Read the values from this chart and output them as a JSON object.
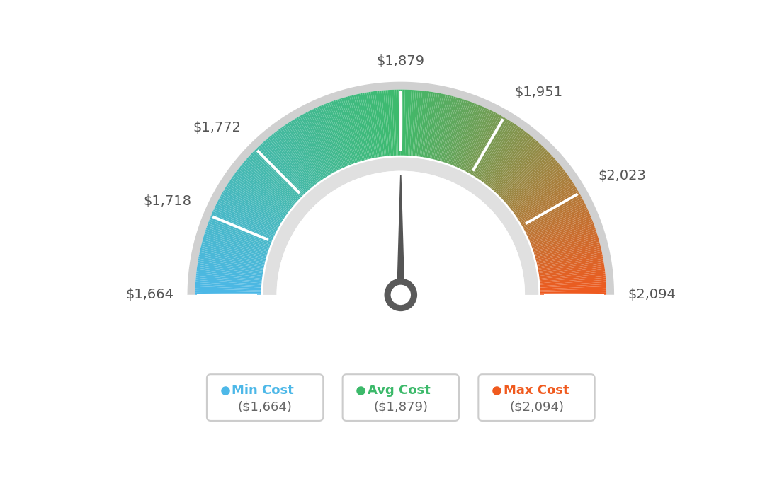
{
  "min_val": 1664,
  "max_val": 2094,
  "avg_val": 1879,
  "tick_values": [
    1664,
    1718,
    1772,
    1879,
    1951,
    2023,
    2094
  ],
  "legend_items": [
    {
      "label": "Min Cost",
      "value": "($1,664)",
      "color": "#4db8e8"
    },
    {
      "label": "Avg Cost",
      "value": "($1,879)",
      "color": "#3cb96a"
    },
    {
      "label": "Max Cost",
      "value": "($2,094)",
      "color": "#f05a1e"
    }
  ],
  "gauge_colors": {
    "blue": [
      0.3,
      0.72,
      0.91
    ],
    "green": [
      0.24,
      0.73,
      0.42
    ],
    "orange": [
      0.94,
      0.35,
      0.12
    ]
  },
  "outer_ring_color": "#d0d0d0",
  "inner_ring_color": "#e0e0e0",
  "needle_color": "#555555",
  "hub_color": "#5a5a5a",
  "label_color": "#555555",
  "tick_color": "#ffffff"
}
